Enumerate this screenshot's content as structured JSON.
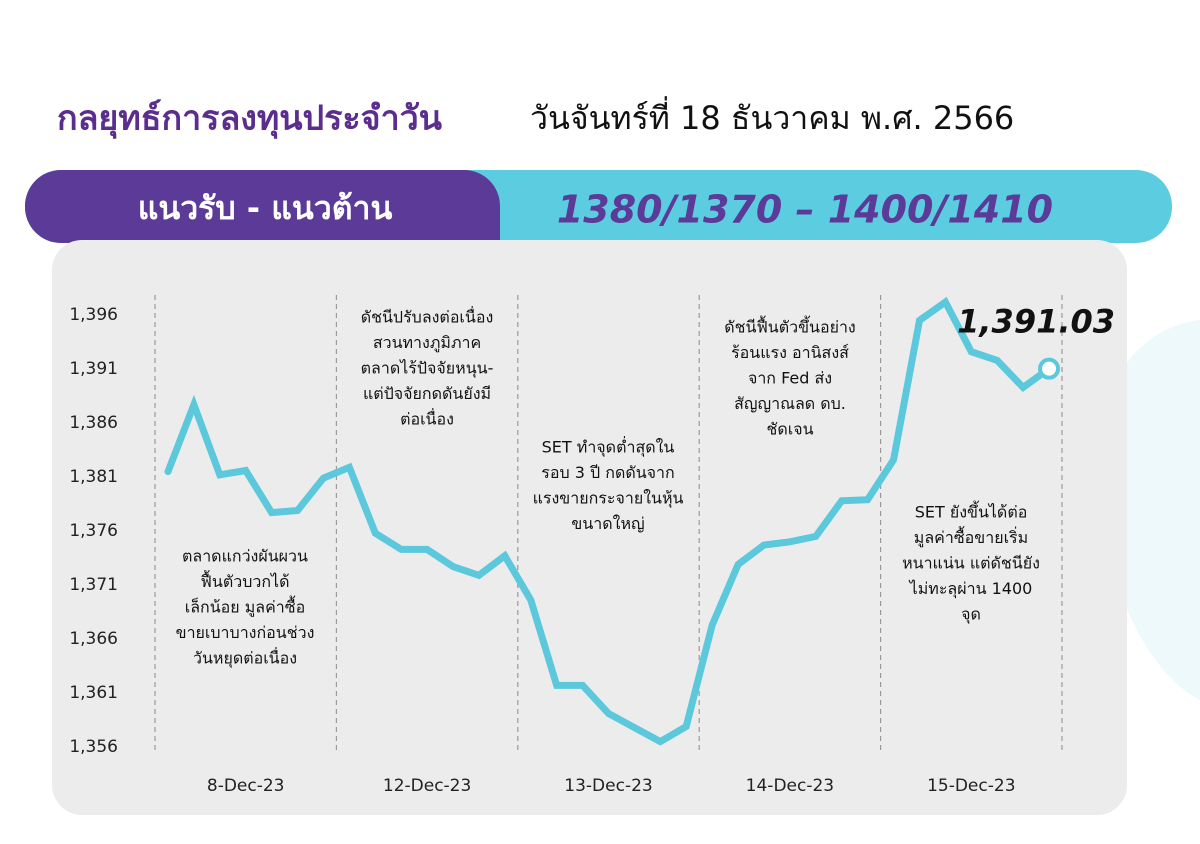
{
  "chart_data": {
    "type": "line",
    "title": "กลยุทธ์การลงทุนประจำวัน",
    "subtitle": "วันจันทร์ที่ 18 ธันวาคม พ.ศ. 2566",
    "banner_label": "แนวรับ - แนวต้าน",
    "banner_value": "1380/1370 –  1400/1410",
    "color": "#5bc8dc",
    "ylim": [
      1356,
      1396
    ],
    "yticks": [
      {
        "value": 1396,
        "label": "1,396"
      },
      {
        "value": 1391,
        "label": "1,391"
      },
      {
        "value": 1386,
        "label": "1,386"
      },
      {
        "value": 1381,
        "label": "1,381"
      },
      {
        "value": 1376,
        "label": "1,376"
      },
      {
        "value": 1371,
        "label": "1,371"
      },
      {
        "value": 1366,
        "label": "1,366"
      },
      {
        "value": 1361,
        "label": "1,361"
      },
      {
        "value": 1356,
        "label": "1,356"
      }
    ],
    "days": [
      {
        "label": "8-Dec-23",
        "values": [
          1381.5,
          1387.7,
          1381.2,
          1381.6,
          1377.7,
          1377.9,
          1380.9
        ],
        "annotation": [
          "ตลาดแกว่งผันผวน",
          "ฟื้นตัวบวกได้",
          "เล็กน้อย มูลค่าซื้อ",
          "ขายเบาบางก่อนช่วง",
          "วันหยุดต่อเนื่อง"
        ]
      },
      {
        "label": "12-Dec-23",
        "values": [
          1381.9,
          1375.8,
          1374.3,
          1374.3,
          1372.7,
          1371.9,
          1373.7
        ],
        "annotation": [
          "ดัชนีปรับลงต่อเนื่อง",
          "สวนทางภูมิภาค",
          "ตลาดไร้ปัจจัยหนุน-",
          "แต่ปัจจัยกดดันยังมี",
          "ต่อเนื่อง"
        ]
      },
      {
        "label": "13-Dec-23",
        "values": [
          1369.6,
          1361.7,
          1361.7,
          1359.1,
          1357.8,
          1356.5,
          1357.9
        ],
        "annotation": [
          "SET ทำจุดต่ำสุดใน",
          "รอบ 3 ปี กดดันจาก",
          "แรงขายกระจายในหุ้น",
          "ขนาดใหญ่"
        ]
      },
      {
        "label": "14-Dec-23",
        "values": [
          1367.3,
          1372.9,
          1374.7,
          1375.0,
          1375.5,
          1378.8,
          1378.9
        ],
        "annotation": [
          "ดัชนีฟื้นตัวขึ้นอย่าง",
          "ร้อนแรง อานิสงส์",
          "จาก Fed ส่ง",
          "สัญญาณลด ดบ.",
          "ชัดเจน"
        ]
      },
      {
        "label": "15-Dec-23",
        "values": [
          1382.6,
          1395.5,
          1397.2,
          1392.6,
          1391.8,
          1389.3,
          1391.03
        ],
        "value_labels": [
          null,
          null,
          null,
          null,
          null,
          null,
          "1,391.03"
        ],
        "annotation": [
          "SET ยังขึ้นได้ต่อ",
          "มูลค่าซื้อขายเริ่ม",
          "หนาแน่น แต่ดัชนียัง",
          "ไม่ทะลุผ่าน 1400",
          "จุด"
        ]
      }
    ]
  }
}
